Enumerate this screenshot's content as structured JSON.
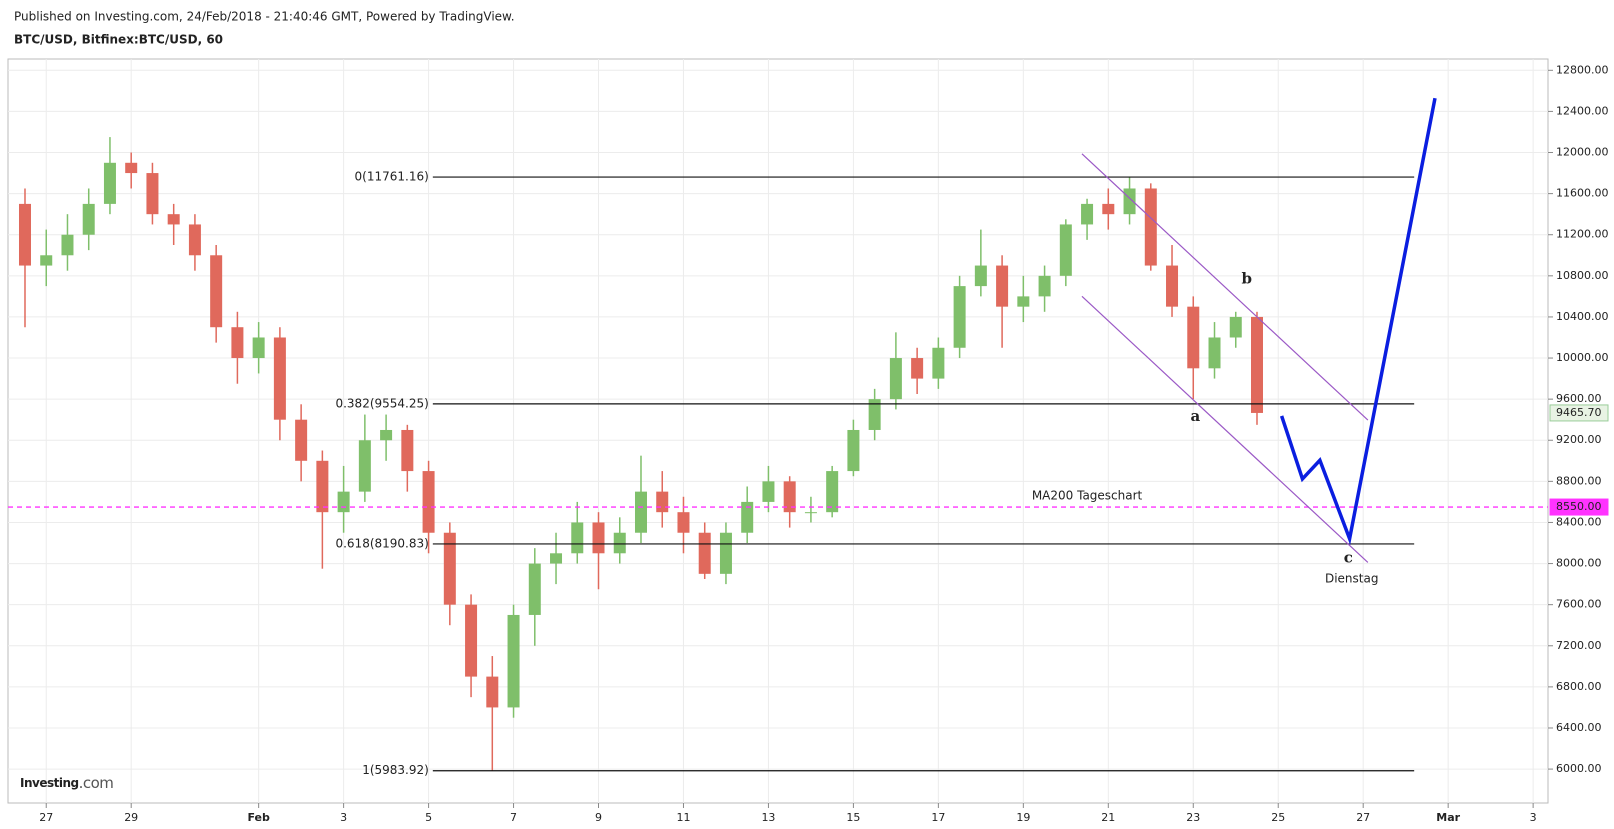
{
  "chart_data": {
    "type": "candlestick",
    "header": "Published on Investing.com, 24/Feb/2018 - 21:40:46 GMT, Powered by TradingView.",
    "title": "BTC/USD, Bitfinex:BTC/USD, 60",
    "logo": [
      "Investing",
      ".com"
    ],
    "up_color": "#7fbf6a",
    "down_color": "#e0695c",
    "x": [
      26.5,
      27,
      27.5,
      28,
      28.5,
      29,
      29.5,
      30,
      30.5,
      31,
      31.5,
      32,
      32.5,
      33,
      33.5,
      34,
      34.5,
      35,
      35.5,
      36,
      36.5,
      37,
      37.5,
      38,
      38.5,
      39,
      39.5,
      40,
      40.5,
      41,
      41.5,
      42,
      42.5,
      43,
      43.5,
      44,
      44.5,
      45,
      45.5,
      46,
      46.5,
      47,
      47.5,
      48,
      48.5,
      49,
      49.5,
      50,
      50.5,
      51,
      51.5,
      52,
      52.5,
      53,
      53.5,
      54,
      54.5,
      55,
      55.5
    ],
    "open": [
      11500,
      10900,
      11000,
      11200,
      11500,
      11900,
      11800,
      11400,
      11300,
      11000,
      10300,
      10000,
      10200,
      9400,
      9000,
      8500,
      8700,
      9200,
      9300,
      8900,
      8300,
      7600,
      6900,
      6600,
      7500,
      8000,
      8100,
      8400,
      8100,
      8300,
      8700,
      8500,
      8300,
      7900,
      8300,
      8600,
      8800,
      8500,
      8500,
      8900,
      9300,
      9600,
      10000,
      9800,
      10100,
      10700,
      10900,
      10500,
      10600,
      10800,
      11300,
      11500,
      11400,
      11650,
      10900,
      10500,
      9900,
      10200,
      10400
    ],
    "high": [
      11650,
      11250,
      11400,
      11650,
      12150,
      12000,
      11900,
      11500,
      11400,
      11100,
      10450,
      10350,
      10300,
      9550,
      9100,
      8950,
      9450,
      9450,
      9350,
      9000,
      8400,
      7700,
      7100,
      7600,
      8150,
      8300,
      8600,
      8500,
      8450,
      9050,
      8900,
      8650,
      8400,
      8400,
      8750,
      8950,
      8850,
      8650,
      8950,
      9400,
      9700,
      10250,
      10100,
      10200,
      10800,
      11250,
      11000,
      10800,
      10900,
      11350,
      11550,
      11650,
      11761.16,
      11700,
      11100,
      10600,
      10350,
      10450,
      10450
    ],
    "low": [
      10300,
      10700,
      10850,
      11050,
      11400,
      11650,
      11300,
      11100,
      10850,
      10150,
      9750,
      9850,
      9200,
      8800,
      7950,
      8300,
      8600,
      9000,
      8700,
      8100,
      7400,
      6700,
      5983.92,
      6500,
      7200,
      7800,
      8000,
      7750,
      8000,
      8200,
      8350,
      8100,
      7850,
      7800,
      8200,
      8500,
      8350,
      8400,
      8450,
      8850,
      9200,
      9500,
      9650,
      9700,
      10000,
      10600,
      10100,
      10350,
      10450,
      10700,
      11150,
      11250,
      11300,
      10850,
      10400,
      9600,
      9800,
      10100,
      9350
    ],
    "close": [
      10900,
      11000,
      11200,
      11500,
      11900,
      11800,
      11400,
      11300,
      11000,
      10300,
      10000,
      10200,
      9400,
      9000,
      8500,
      8700,
      9200,
      9300,
      8900,
      8300,
      7600,
      6900,
      6600,
      7500,
      8000,
      8100,
      8400,
      8100,
      8300,
      8700,
      8500,
      8300,
      7900,
      8300,
      8600,
      8800,
      8500,
      8500,
      8900,
      9300,
      9600,
      10000,
      9800,
      10100,
      10700,
      10900,
      10500,
      10600,
      10800,
      11300,
      11500,
      11400,
      11650,
      10900,
      10500,
      9900,
      10200,
      10400,
      9465.7
    ],
    "xlim": [
      26.1,
      62.35
    ],
    "ylim": [
      5670,
      12910
    ],
    "grid": true,
    "xticks": [
      27,
      29,
      {
        "value": 32,
        "label": "Feb"
      },
      {
        "value": 34,
        "label": "3"
      },
      {
        "value": 36,
        "label": "5"
      },
      {
        "value": 38,
        "label": "7"
      },
      {
        "value": 40,
        "label": "9"
      },
      {
        "value": 42,
        "label": "11"
      },
      {
        "value": 44,
        "label": "13"
      },
      {
        "value": 46,
        "label": "15"
      },
      {
        "value": 48,
        "label": "17"
      },
      {
        "value": 50,
        "label": "19"
      },
      {
        "value": 52,
        "label": "21"
      },
      {
        "value": 54,
        "label": "23"
      },
      {
        "value": 56,
        "label": "25"
      },
      {
        "value": 58,
        "label": "27"
      },
      {
        "value": 60,
        "label": "Mar"
      },
      {
        "value": 62,
        "label": "3"
      }
    ],
    "yticks": [
      {
        "value": 6000,
        "label": "6000.00"
      },
      {
        "value": 6400,
        "label": "6400.00"
      },
      {
        "value": 6800,
        "label": "6800.00"
      },
      {
        "value": 7200,
        "label": "7200.00"
      },
      {
        "value": 7600,
        "label": "7600.00"
      },
      {
        "value": 8000,
        "label": "8000.00"
      },
      {
        "value": 8400,
        "label": "8400.00"
      },
      {
        "value": 8800,
        "label": "8800.00"
      },
      {
        "value": 9200,
        "label": "9200.00"
      },
      {
        "value": 9600,
        "label": "9600.00"
      },
      {
        "value": 10000,
        "label": "10000.00"
      },
      {
        "value": 10400,
        "label": "10400.00"
      },
      {
        "value": 10800,
        "label": "10800.00"
      },
      {
        "value": 11200,
        "label": "11200.00"
      },
      {
        "value": 11600,
        "label": "11600.00"
      },
      {
        "value": 12000,
        "label": "12000.00"
      },
      {
        "value": 12400,
        "label": "12400.00"
      },
      {
        "value": 12800,
        "label": "12800.00"
      }
    ],
    "fib_x": [
      36.1,
      59.2
    ],
    "fib_levels": [
      {
        "value": 11761.16,
        "label": "0(11761.16)"
      },
      {
        "value": 9554.25,
        "label": "0.382(9554.25)"
      },
      {
        "value": 8190.83,
        "label": "0.618(8190.83)"
      },
      {
        "value": 5983.92,
        "label": "1(5983.92)"
      }
    ],
    "ma_line": {
      "value": 8550,
      "label": "MA200 Tageschart",
      "color": "#ff33ff",
      "label_x": 50.2
    },
    "price_tags": [
      {
        "value": 9465.7,
        "label": "9465.70",
        "color": "#e8f3e4",
        "text_color": "#222"
      },
      {
        "value": 8550,
        "label": "8550.00",
        "color": "#ff33ff",
        "text_color": "#ffffff"
      }
    ],
    "channel_color": "#9b59c6",
    "channel": [
      {
        "x": [
          51.38,
          58.11
        ],
        "y": [
          11987,
          9396
        ]
      },
      {
        "x": [
          51.38,
          58.11
        ],
        "y": [
          10601,
          8011
        ]
      }
    ],
    "projection": {
      "color": "#0a1ee0",
      "x": [
        56.08,
        56.57,
        56.98,
        57.68,
        59.69
      ],
      "y": [
        9437,
        8824,
        9005,
        8242,
        12529
      ]
    },
    "wave_labels": [
      {
        "text": "a",
        "x": 54.05,
        "y": 9427
      },
      {
        "text": "b",
        "x": 55.26,
        "y": 10762
      },
      {
        "text": "c",
        "x": 57.65,
        "y": 8051
      }
    ],
    "annotation": {
      "text": "Dienstag",
      "x": 57.73,
      "y": 7850,
      "color": "#0a1ee0"
    }
  }
}
